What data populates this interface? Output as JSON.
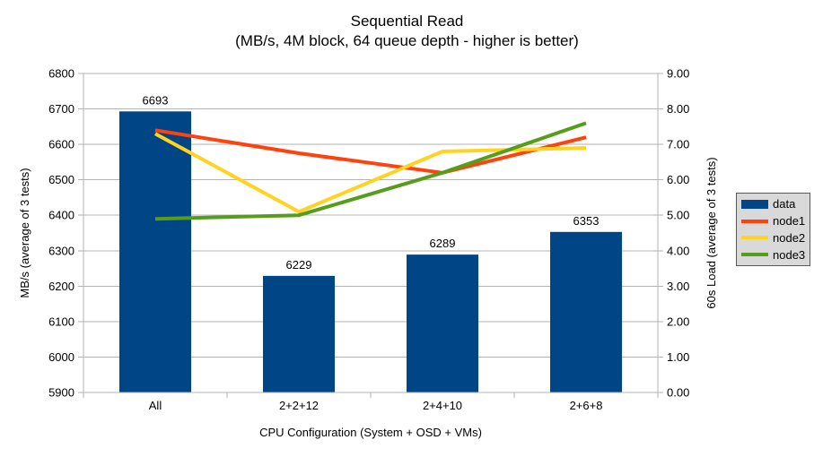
{
  "chart_data": {
    "type": "bar+line",
    "title": "Sequential Read",
    "subtitle": "(MB/s, 4M block, 64 queue depth - higher is better)",
    "categories": [
      "All",
      "2+2+12",
      "2+4+10",
      "2+6+8"
    ],
    "xlabel": "CPU Configuration (System + OSD + VMs)",
    "left_axis": {
      "label": "MB/s (average of 3 tests)",
      "min": 5900,
      "max": 6800,
      "step": 100,
      "ticks": [
        "6800",
        "6700",
        "6600",
        "6500",
        "6400",
        "6300",
        "6200",
        "6100",
        "6000",
        "5900"
      ]
    },
    "right_axis": {
      "label": "60s Load (average of 3 tests)",
      "min": 0,
      "max": 9,
      "step": 1,
      "ticks": [
        "9.00",
        "8.00",
        "7.00",
        "6.00",
        "5.00",
        "4.00",
        "3.00",
        "2.00",
        "1.00",
        "0.00"
      ]
    },
    "bar_series": {
      "name": "data",
      "axis": "left",
      "color": "#004586",
      "values": [
        6693,
        6229,
        6289,
        6353
      ],
      "labels": [
        "6693",
        "6229",
        "6289",
        "6353"
      ]
    },
    "line_series": [
      {
        "name": "node1",
        "axis": "right",
        "color": "#ff420e",
        "values": [
          7.4,
          6.75,
          6.2,
          7.2
        ]
      },
      {
        "name": "node2",
        "axis": "right",
        "color": "#ffd320",
        "values": [
          7.3,
          5.1,
          6.8,
          6.9
        ]
      },
      {
        "name": "node3",
        "axis": "right",
        "color": "#579d1c",
        "values": [
          4.9,
          5.0,
          6.2,
          7.6
        ]
      }
    ],
    "legend": {
      "position": "right",
      "entries": [
        "data",
        "node1",
        "node2",
        "node3"
      ]
    },
    "grid": true,
    "colors": {
      "grid": "#b3b3b3",
      "axis": "#b3b3b3",
      "text": "#000000",
      "legend_bg": "#d9d9d9",
      "legend_border": "#595959"
    }
  }
}
